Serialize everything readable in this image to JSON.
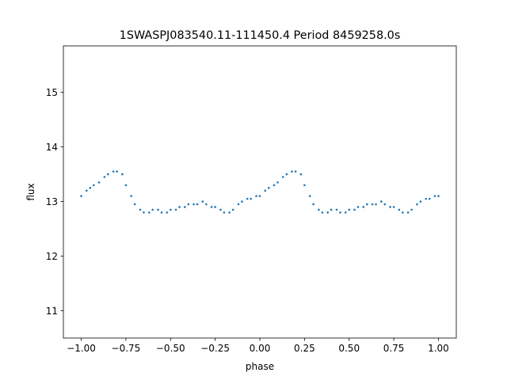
{
  "chart_data": {
    "type": "scatter",
    "title": "1SWASPJ083540.11-111450.4 Period 8459258.0s",
    "xlabel": "phase",
    "ylabel": "flux",
    "xlim": [
      -1.1,
      1.1
    ],
    "ylim": [
      10.5,
      15.85
    ],
    "x_ticks": [
      -1.0,
      -0.75,
      -0.5,
      -0.25,
      0.0,
      0.25,
      0.5,
      0.75,
      1.0
    ],
    "x_tick_labels": [
      "−1.00",
      "−0.75",
      "−0.50",
      "−0.25",
      "0.00",
      "0.25",
      "0.50",
      "0.75",
      "1.00"
    ],
    "y_ticks": [
      11,
      12,
      13,
      14,
      15
    ],
    "y_tick_labels": [
      "11",
      "12",
      "13",
      "14",
      "15"
    ],
    "grid": false,
    "legend": "none",
    "marker_color": "#1f77b4",
    "series": [
      {
        "x": [
          -1.0,
          -0.97,
          -0.95,
          -0.93,
          -0.9,
          -0.87,
          -0.85,
          -0.82,
          -0.8,
          -0.77,
          -0.75,
          -0.72,
          -0.7,
          -0.67,
          -0.65,
          -0.62,
          -0.6,
          -0.57,
          -0.55,
          -0.52,
          -0.5,
          -0.47,
          -0.45,
          -0.42,
          -0.4,
          -0.37,
          -0.35,
          -0.32,
          -0.3,
          -0.27,
          -0.25,
          -0.22,
          -0.2,
          -0.17,
          -0.15,
          -0.12,
          -0.1,
          -0.07,
          -0.05,
          -0.02,
          0.0,
          0.03,
          0.05,
          0.08,
          0.1,
          0.13,
          0.15,
          0.18,
          0.2,
          0.23,
          0.25,
          0.28,
          0.3,
          0.33,
          0.35,
          0.38,
          0.4,
          0.43,
          0.45,
          0.48,
          0.5,
          0.53,
          0.55,
          0.58,
          0.6,
          0.63,
          0.65,
          0.68,
          0.7,
          0.73,
          0.75,
          0.78,
          0.8,
          0.83,
          0.85,
          0.88,
          0.9,
          0.93,
          0.95,
          0.98,
          1.0
        ],
        "y": [
          13.1,
          13.2,
          13.25,
          13.3,
          13.35,
          13.45,
          13.5,
          13.55,
          13.55,
          13.5,
          13.3,
          13.1,
          12.95,
          12.85,
          12.8,
          12.8,
          12.85,
          12.85,
          12.8,
          12.8,
          12.85,
          12.85,
          12.9,
          12.9,
          12.95,
          12.95,
          12.95,
          13.0,
          12.95,
          12.9,
          12.9,
          12.85,
          12.8,
          12.8,
          12.85,
          12.95,
          13.0,
          13.05,
          13.05,
          13.1,
          13.1,
          13.2,
          13.25,
          13.3,
          13.35,
          13.45,
          13.5,
          13.55,
          13.55,
          13.5,
          13.3,
          13.1,
          12.95,
          12.85,
          12.8,
          12.8,
          12.85,
          12.85,
          12.8,
          12.8,
          12.85,
          12.85,
          12.9,
          12.9,
          12.95,
          12.95,
          12.95,
          13.0,
          12.95,
          12.9,
          12.9,
          12.85,
          12.8,
          12.8,
          12.85,
          12.95,
          13.0,
          13.05,
          13.05,
          13.1,
          13.1
        ]
      }
    ]
  }
}
